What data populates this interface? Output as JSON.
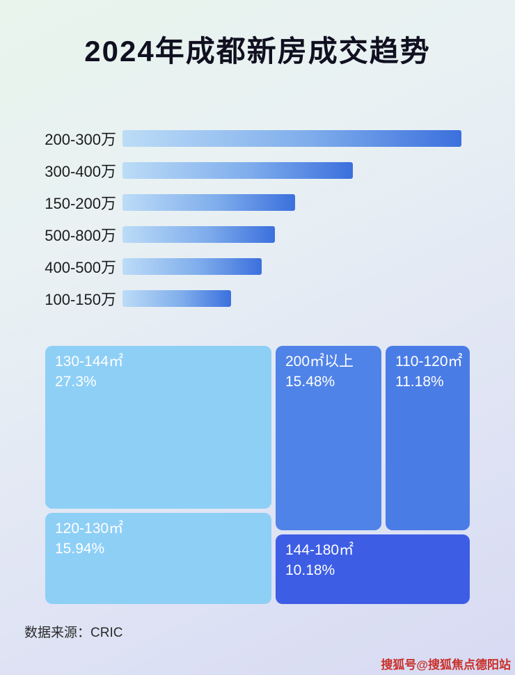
{
  "page": {
    "title": "2024年成都新房成交趋势",
    "source_label": "数据来源：CRIC",
    "watermark": "搜狐号@搜狐焦点德阳站"
  },
  "colors": {
    "bar_gradient_start": "#bcdcf7",
    "bar_gradient_end": "#3b70dd",
    "treemap_light_blue": "#8ecff6",
    "treemap_medium_blue": "#4c7fe6",
    "treemap_dark_blue": "#3d5de4",
    "watermark_red": "#c92f28",
    "title_color": "#101020"
  },
  "chart_data": [
    {
      "type": "bar",
      "title": "2024年成都新房成交趋势",
      "orientation": "horizontal",
      "categories": [
        "200-300万",
        "300-400万",
        "150-200万",
        "500-800万",
        "400-500万",
        "100-150万"
      ],
      "values": [
        100,
        68,
        51,
        45,
        41,
        32
      ],
      "value_note": "relative bar length as % of longest bar; no numeric value labels shown in image",
      "xlim": [
        0,
        100
      ],
      "grid": false,
      "legend": false
    },
    {
      "type": "treemap",
      "items": [
        {
          "label": "130-144㎡",
          "value": "27.3%"
        },
        {
          "label": "200㎡以上",
          "value": "15.48%"
        },
        {
          "label": "110-120㎡",
          "value": "11.18%"
        },
        {
          "label": "120-130㎡",
          "value": "15.94%"
        },
        {
          "label": "144-180㎡",
          "value": "10.18%"
        }
      ]
    }
  ]
}
